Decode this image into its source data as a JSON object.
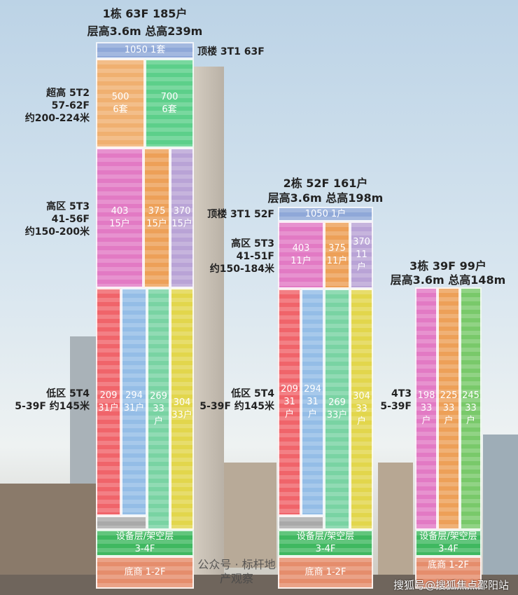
{
  "colors": {
    "top": "#8fa8d8",
    "orange": "#f0b070",
    "green": "#5ccf8a",
    "pink": "#e27ac4",
    "orange2": "#eda058",
    "purple": "#b9a3d6",
    "red": "#f0646a",
    "blue": "#94bde6",
    "mint": "#79d3a3",
    "yellow": "#e2d64c",
    "equip": "#3fb860",
    "shop": "#e58d6c",
    "gray": "#a9a9a9"
  },
  "b1": {
    "title": "1栋 63F 185户",
    "sub": "层高3.6m 总高239m",
    "top_label": "顶楼 3T1 63F",
    "top_unit": "1050 1套",
    "super": {
      "l1": "超高 5T2",
      "l2": "57-62F",
      "l3": "约200-224米",
      "units": [
        {
          "size": "500",
          "count": "6套"
        },
        {
          "size": "700",
          "count": "6套"
        }
      ]
    },
    "high": {
      "l1": "高区 5T3",
      "l2": "41-56F",
      "l3": "约150-200米",
      "units": [
        {
          "size": "403",
          "count": "15户"
        },
        {
          "size": "375",
          "count": "15户"
        },
        {
          "size": "370",
          "count": "15户"
        }
      ]
    },
    "low": {
      "l1": "低区 5T4",
      "l2": "5-39F 约145米",
      "units": [
        {
          "size": "209",
          "count": "31户"
        },
        {
          "size": "294",
          "count": "31户"
        },
        {
          "size": "269",
          "count": "33户"
        },
        {
          "size": "304",
          "count": "33户"
        }
      ]
    },
    "equip": "设备层/架空层",
    "equip_f": "3-4F",
    "shop": "底商 1-2F"
  },
  "b2": {
    "title": "2栋 52F 161户",
    "sub": "层高3.6m 总高198m",
    "top_label": "顶楼 3T1 52F",
    "top_unit": "1050 1户",
    "high": {
      "l1": "高区 5T3",
      "l2": "41-51F",
      "l3": "约150-184米",
      "units": [
        {
          "size": "403",
          "count": "11户"
        },
        {
          "size": "375",
          "count": "11户"
        },
        {
          "size": "370",
          "count": "11户"
        }
      ]
    },
    "low": {
      "l1": "低区 5T4",
      "l2": "5-39F 约145米",
      "units": [
        {
          "size": "209",
          "count": "31户"
        },
        {
          "size": "294",
          "count": "31户"
        },
        {
          "size": "269",
          "count": "33户"
        },
        {
          "size": "304",
          "count": "33户"
        }
      ]
    },
    "equip": "设备层/架空层",
    "equip_f": "3-4F",
    "shop": "底商 1-2F"
  },
  "b3": {
    "title": "3栋 39F 99户",
    "sub": "层高3.6m 总高148m",
    "low": {
      "l1": "4T3",
      "l2": "5-39F",
      "units": [
        {
          "size": "198",
          "count": "33户"
        },
        {
          "size": "225",
          "count": "33户"
        },
        {
          "size": "245",
          "count": "33户"
        }
      ]
    },
    "equip": "设备层/架空层",
    "equip_f": "3-4F",
    "shop": "底商 1-2F"
  },
  "watermark": {
    "wechat": "公众号 · 标杆地产观察",
    "sohu": "搜狐号@搜狐焦点邵阳站"
  }
}
